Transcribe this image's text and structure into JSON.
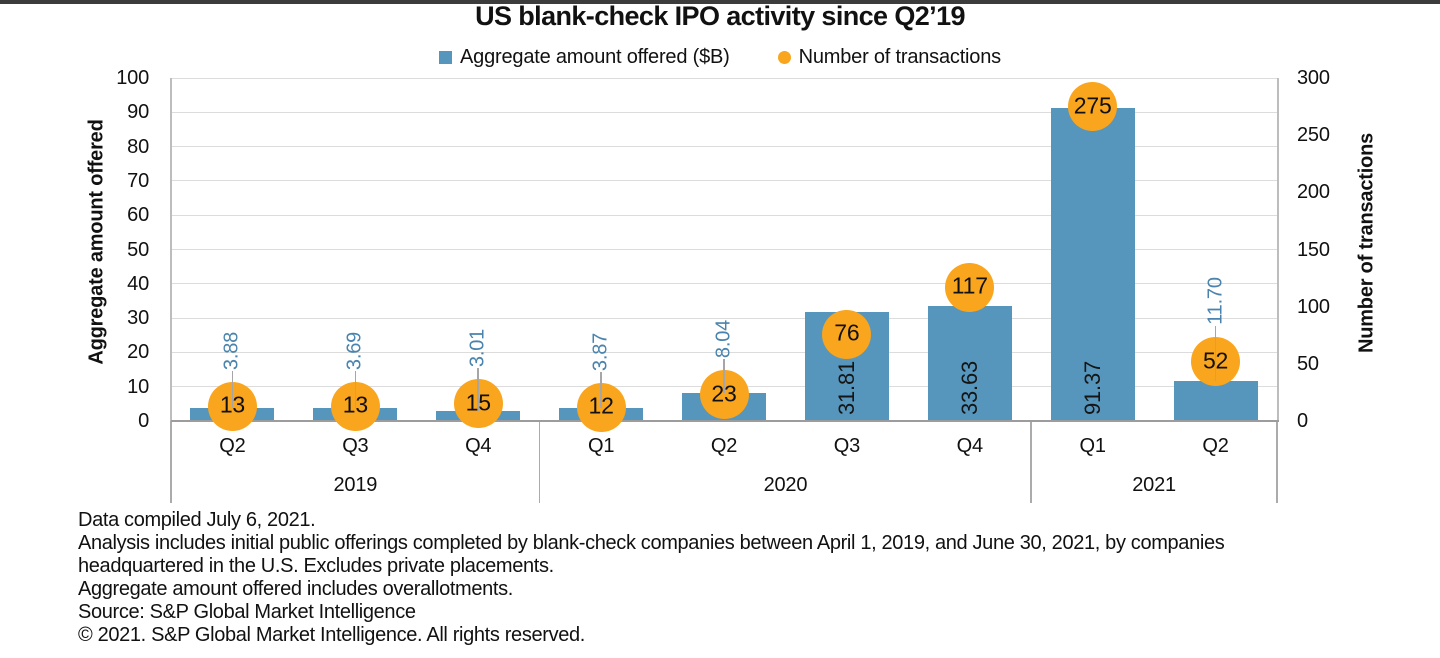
{
  "header": {
    "title": "US blank-check IPO activity since Q2’19"
  },
  "legend": [
    {
      "label": "Aggregate amount offered ($B)",
      "marker": "square",
      "color": "#5696bd"
    },
    {
      "label": "Number of transactions",
      "marker": "circle",
      "color": "#f9a51d"
    }
  ],
  "chart_data": {
    "type": "bar",
    "title": "US blank-check IPO activity since Q2’19",
    "categories": [
      "Q2",
      "Q3",
      "Q4",
      "Q1",
      "Q2",
      "Q3",
      "Q4",
      "Q1",
      "Q2"
    ],
    "year_groups": [
      {
        "label": "2019",
        "quarters": 3
      },
      {
        "label": "2020",
        "quarters": 4
      },
      {
        "label": "2021",
        "quarters": 2
      }
    ],
    "series": [
      {
        "name": "Aggregate amount offered ($B)",
        "type": "bar",
        "axis": "left",
        "color": "#5696bd",
        "values": [
          3.88,
          3.69,
          3.01,
          3.87,
          8.04,
          31.81,
          33.63,
          91.37,
          11.7
        ],
        "data_labels": [
          "3.88",
          "3.69",
          "3.01",
          "3.87",
          "8.04",
          "31.81",
          "33.63",
          "91.37",
          "11.70"
        ]
      },
      {
        "name": "Number of transactions",
        "type": "point",
        "axis": "right",
        "color": "#f9a51d",
        "values": [
          13,
          13,
          15,
          12,
          23,
          76,
          117,
          275,
          52
        ]
      }
    ],
    "left_axis": {
      "title": "Aggregate amount offered",
      "min": 0,
      "max": 100,
      "tick_step": 10,
      "ticks": [
        0,
        10,
        20,
        30,
        40,
        50,
        60,
        70,
        80,
        90,
        100
      ]
    },
    "right_axis": {
      "title": "Number of transactions",
      "min": 0,
      "max": 300,
      "tick_step": 50,
      "ticks": [
        0,
        50,
        100,
        150,
        200,
        250,
        300
      ]
    },
    "legend_position": "top",
    "grid": true
  },
  "footnotes": [
    "Data compiled July 6, 2021.",
    "Analysis includes initial public offerings completed by blank-check companies between April 1, 2019, and June 30, 2021, by companies",
    "headquartered in the U.S. Excludes private placements.",
    "Aggregate amount offered includes overallotments.",
    "Source: S&P Global Market Intelligence",
    "© 2021. S&P Global Market Intelligence. All rights reserved."
  ]
}
